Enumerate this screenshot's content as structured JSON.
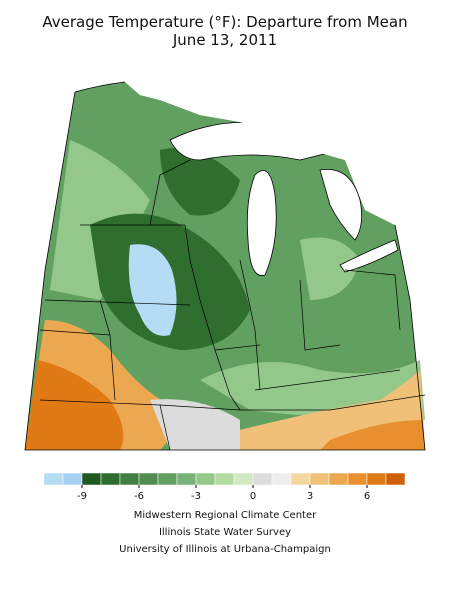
{
  "title": "Average Temperature (°F): Departure from Mean",
  "subtitle": "June 13, 2011",
  "colorbar": {
    "bins": [
      -11,
      -10,
      -9,
      -8,
      -7,
      -6,
      -5,
      -4,
      -3,
      -2,
      -1,
      0,
      1,
      2,
      3,
      4,
      5,
      6,
      7,
      8
    ],
    "colors": [
      "#b4dcf5",
      "#a8d0f5",
      "#1e5a1e",
      "#2f6e2f",
      "#3f7f3f",
      "#4f8e4f",
      "#62a062",
      "#78b278",
      "#94c88a",
      "#b2dca0",
      "#d2e8c0",
      "#dcdcdc",
      "#eeeeee",
      "#f5d7a0",
      "#f0c078",
      "#eca850",
      "#e89030",
      "#e07a14",
      "#d06008"
    ],
    "ticks": [
      -9,
      -6,
      -3,
      0,
      3,
      6
    ]
  },
  "credits": [
    "Midwestern Regional Climate Center",
    "Illinois State Water Survey",
    "University of Illinois at Urbana-Champaign"
  ]
}
